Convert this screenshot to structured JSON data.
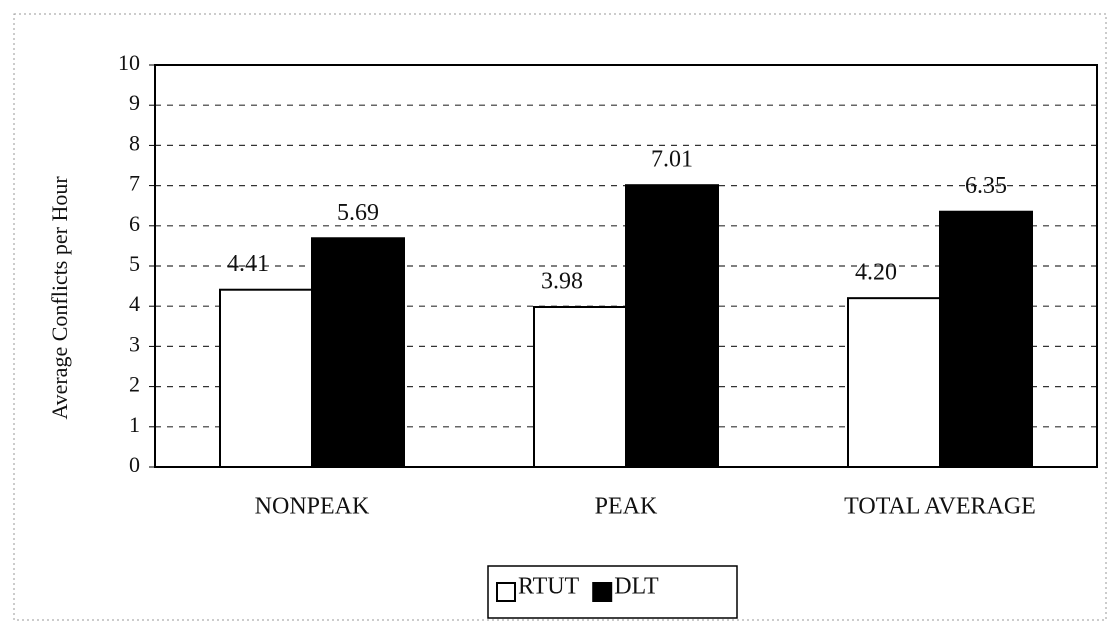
{
  "chart_data": {
    "type": "bar",
    "ylabel": "Average Conflicts per Hour",
    "categories": [
      "NONPEAK",
      "PEAK",
      "TOTAL AVERAGE"
    ],
    "series": [
      {
        "name": "RTUT",
        "color": "#ffffff",
        "values": [
          4.41,
          3.98,
          4.2
        ],
        "value_labels": [
          "4.41",
          "3.98",
          "4.20"
        ]
      },
      {
        "name": "DLT",
        "color": "#000000",
        "values": [
          5.69,
          7.01,
          6.35
        ],
        "value_labels": [
          "5.69",
          "7.01",
          "6.35"
        ]
      }
    ],
    "ylim": [
      0,
      10
    ],
    "yticks": [
      0,
      1,
      2,
      3,
      4,
      5,
      6,
      7,
      8,
      9,
      10
    ],
    "grid": true,
    "legend": "bottom"
  }
}
